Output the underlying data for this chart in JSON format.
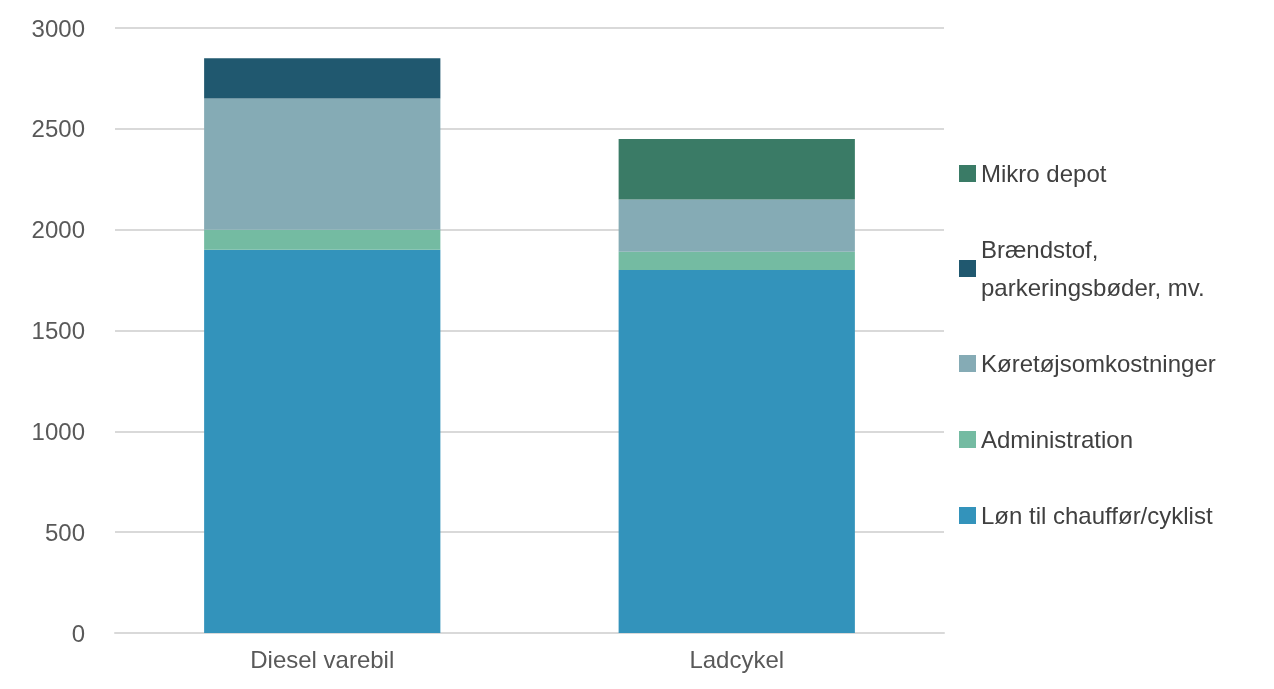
{
  "chart_data": {
    "type": "bar",
    "stacked": true,
    "categories": [
      "Diesel varebil",
      "Ladcykel"
    ],
    "series": [
      {
        "name": "Løn til chauffør/cyklist",
        "color": "#3393bb",
        "values": [
          1900,
          1800
        ]
      },
      {
        "name": "Administration",
        "color": "#74bba2",
        "values": [
          100,
          90
        ]
      },
      {
        "name": "Køretøjsomkostninger",
        "color": "#85abb5",
        "values": [
          650,
          260
        ]
      },
      {
        "name": "Brændstof, parkeringsbøder, mv.",
        "color": "#20586f",
        "values": [
          200,
          null
        ]
      },
      {
        "name": "Mikro depot",
        "color": "#3a7b66",
        "values": [
          null,
          300
        ]
      }
    ],
    "ylim": [
      0,
      3000
    ],
    "yticks": [
      0,
      500,
      1000,
      1500,
      2000,
      2500,
      3000
    ],
    "grid": "y",
    "legend": "right"
  }
}
